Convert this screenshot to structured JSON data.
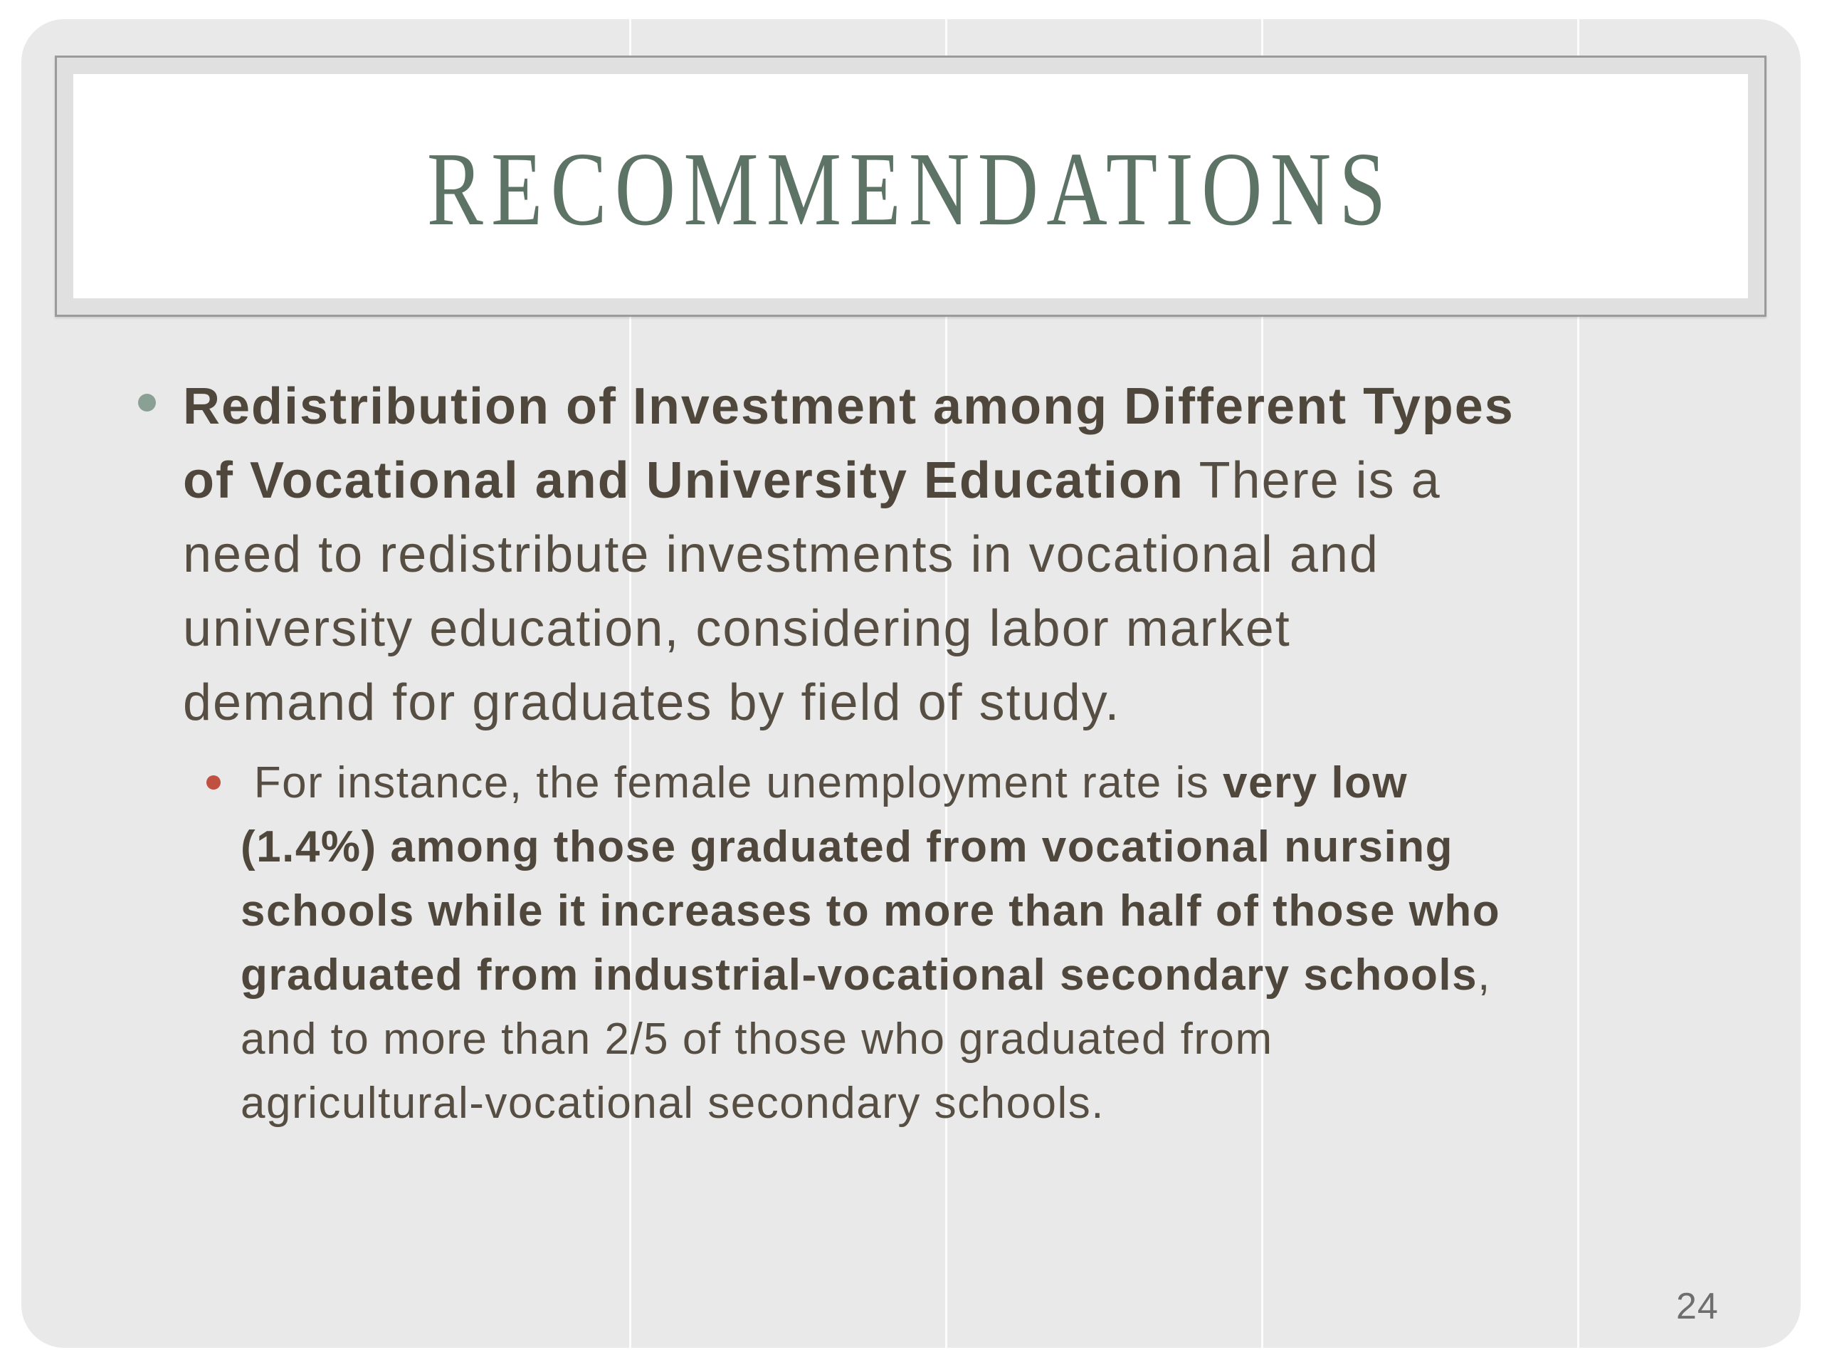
{
  "slide": {
    "title": "RECOMMENDATIONS",
    "page_number": "24",
    "colors": {
      "slide_bg": "#e9e9e9",
      "frame_band": "#e0e0e0",
      "frame_border": "#9b9b9b",
      "title": "#5d7366",
      "body_text": "#564e42",
      "body_bold": "#4f473b",
      "main_bullet": "#8ba095",
      "sub_bullet": "#c0503f",
      "page_number": "#6e6e6e"
    },
    "main_bullet": {
      "lines": [
        [
          {
            "t": "Redistribution of Investment among Different Types",
            "b": true
          }
        ],
        [
          {
            "t": "of Vocational and University Education",
            "b": true
          },
          {
            "t": " There is a",
            "b": false
          }
        ],
        [
          {
            "t": "need to redistribute investments in vocational and",
            "b": false
          }
        ],
        [
          {
            "t": "university education, considering labor market",
            "b": false
          }
        ],
        [
          {
            "t": "demand for graduates by field of study.",
            "b": false
          }
        ]
      ]
    },
    "sub_bullet": {
      "lines": [
        [
          {
            "t": " For instance, the female unemployment rate is ",
            "b": false
          },
          {
            "t": "very low",
            "b": true
          }
        ],
        [
          {
            "t": "(1.4%) among those graduated from vocational nursing",
            "b": true
          }
        ],
        [
          {
            "t": "schools while it increases to more than half of those who",
            "b": true
          }
        ],
        [
          {
            "t": "graduated from industrial-vocational secondary schools",
            "b": true
          },
          {
            "t": ",",
            "b": false
          }
        ],
        [
          {
            "t": "and to more than 2/5 of those who graduated from",
            "b": false
          }
        ],
        [
          {
            "t": "agricultural-vocational secondary schools.",
            "b": false
          }
        ]
      ]
    }
  }
}
